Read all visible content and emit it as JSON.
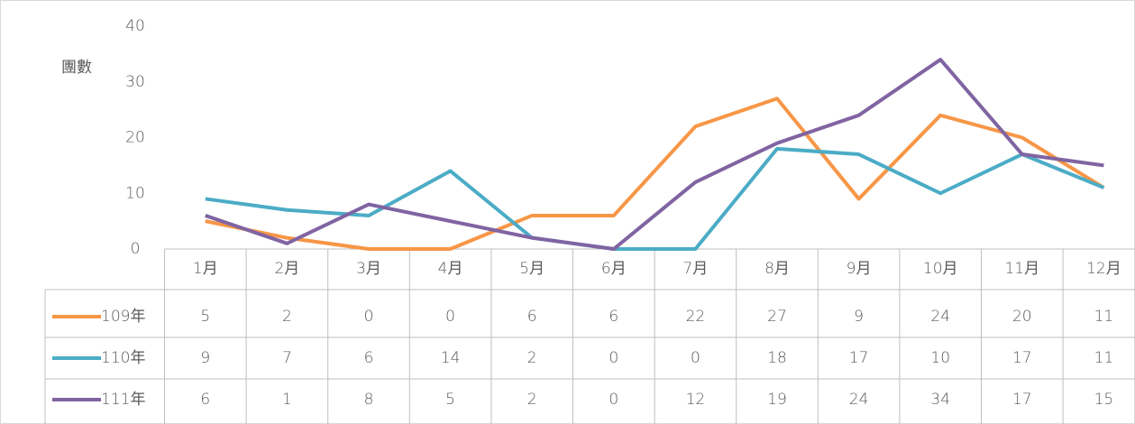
{
  "chart_data": {
    "type": "line",
    "y_label": "團數",
    "categories": [
      "1月",
      "2月",
      "3月",
      "4月",
      "5月",
      "6月",
      "7月",
      "8月",
      "9月",
      "10月",
      "11月",
      "12月"
    ],
    "series": [
      {
        "name": "109年",
        "color": "#f79646",
        "values": [
          5,
          2,
          0,
          0,
          6,
          6,
          22,
          27,
          9,
          24,
          20,
          11
        ]
      },
      {
        "name": "110年",
        "color": "#4bacc6",
        "values": [
          9,
          7,
          6,
          14,
          2,
          0,
          0,
          18,
          17,
          10,
          17,
          11
        ]
      },
      {
        "name": "111年",
        "color": "#8064a2",
        "values": [
          6,
          1,
          8,
          5,
          2,
          0,
          12,
          19,
          24,
          34,
          17,
          15
        ]
      }
    ],
    "ylim": [
      0,
      40
    ],
    "yticks": [
      0,
      10,
      20,
      30,
      40
    ],
    "grid": false,
    "data_table": true
  }
}
